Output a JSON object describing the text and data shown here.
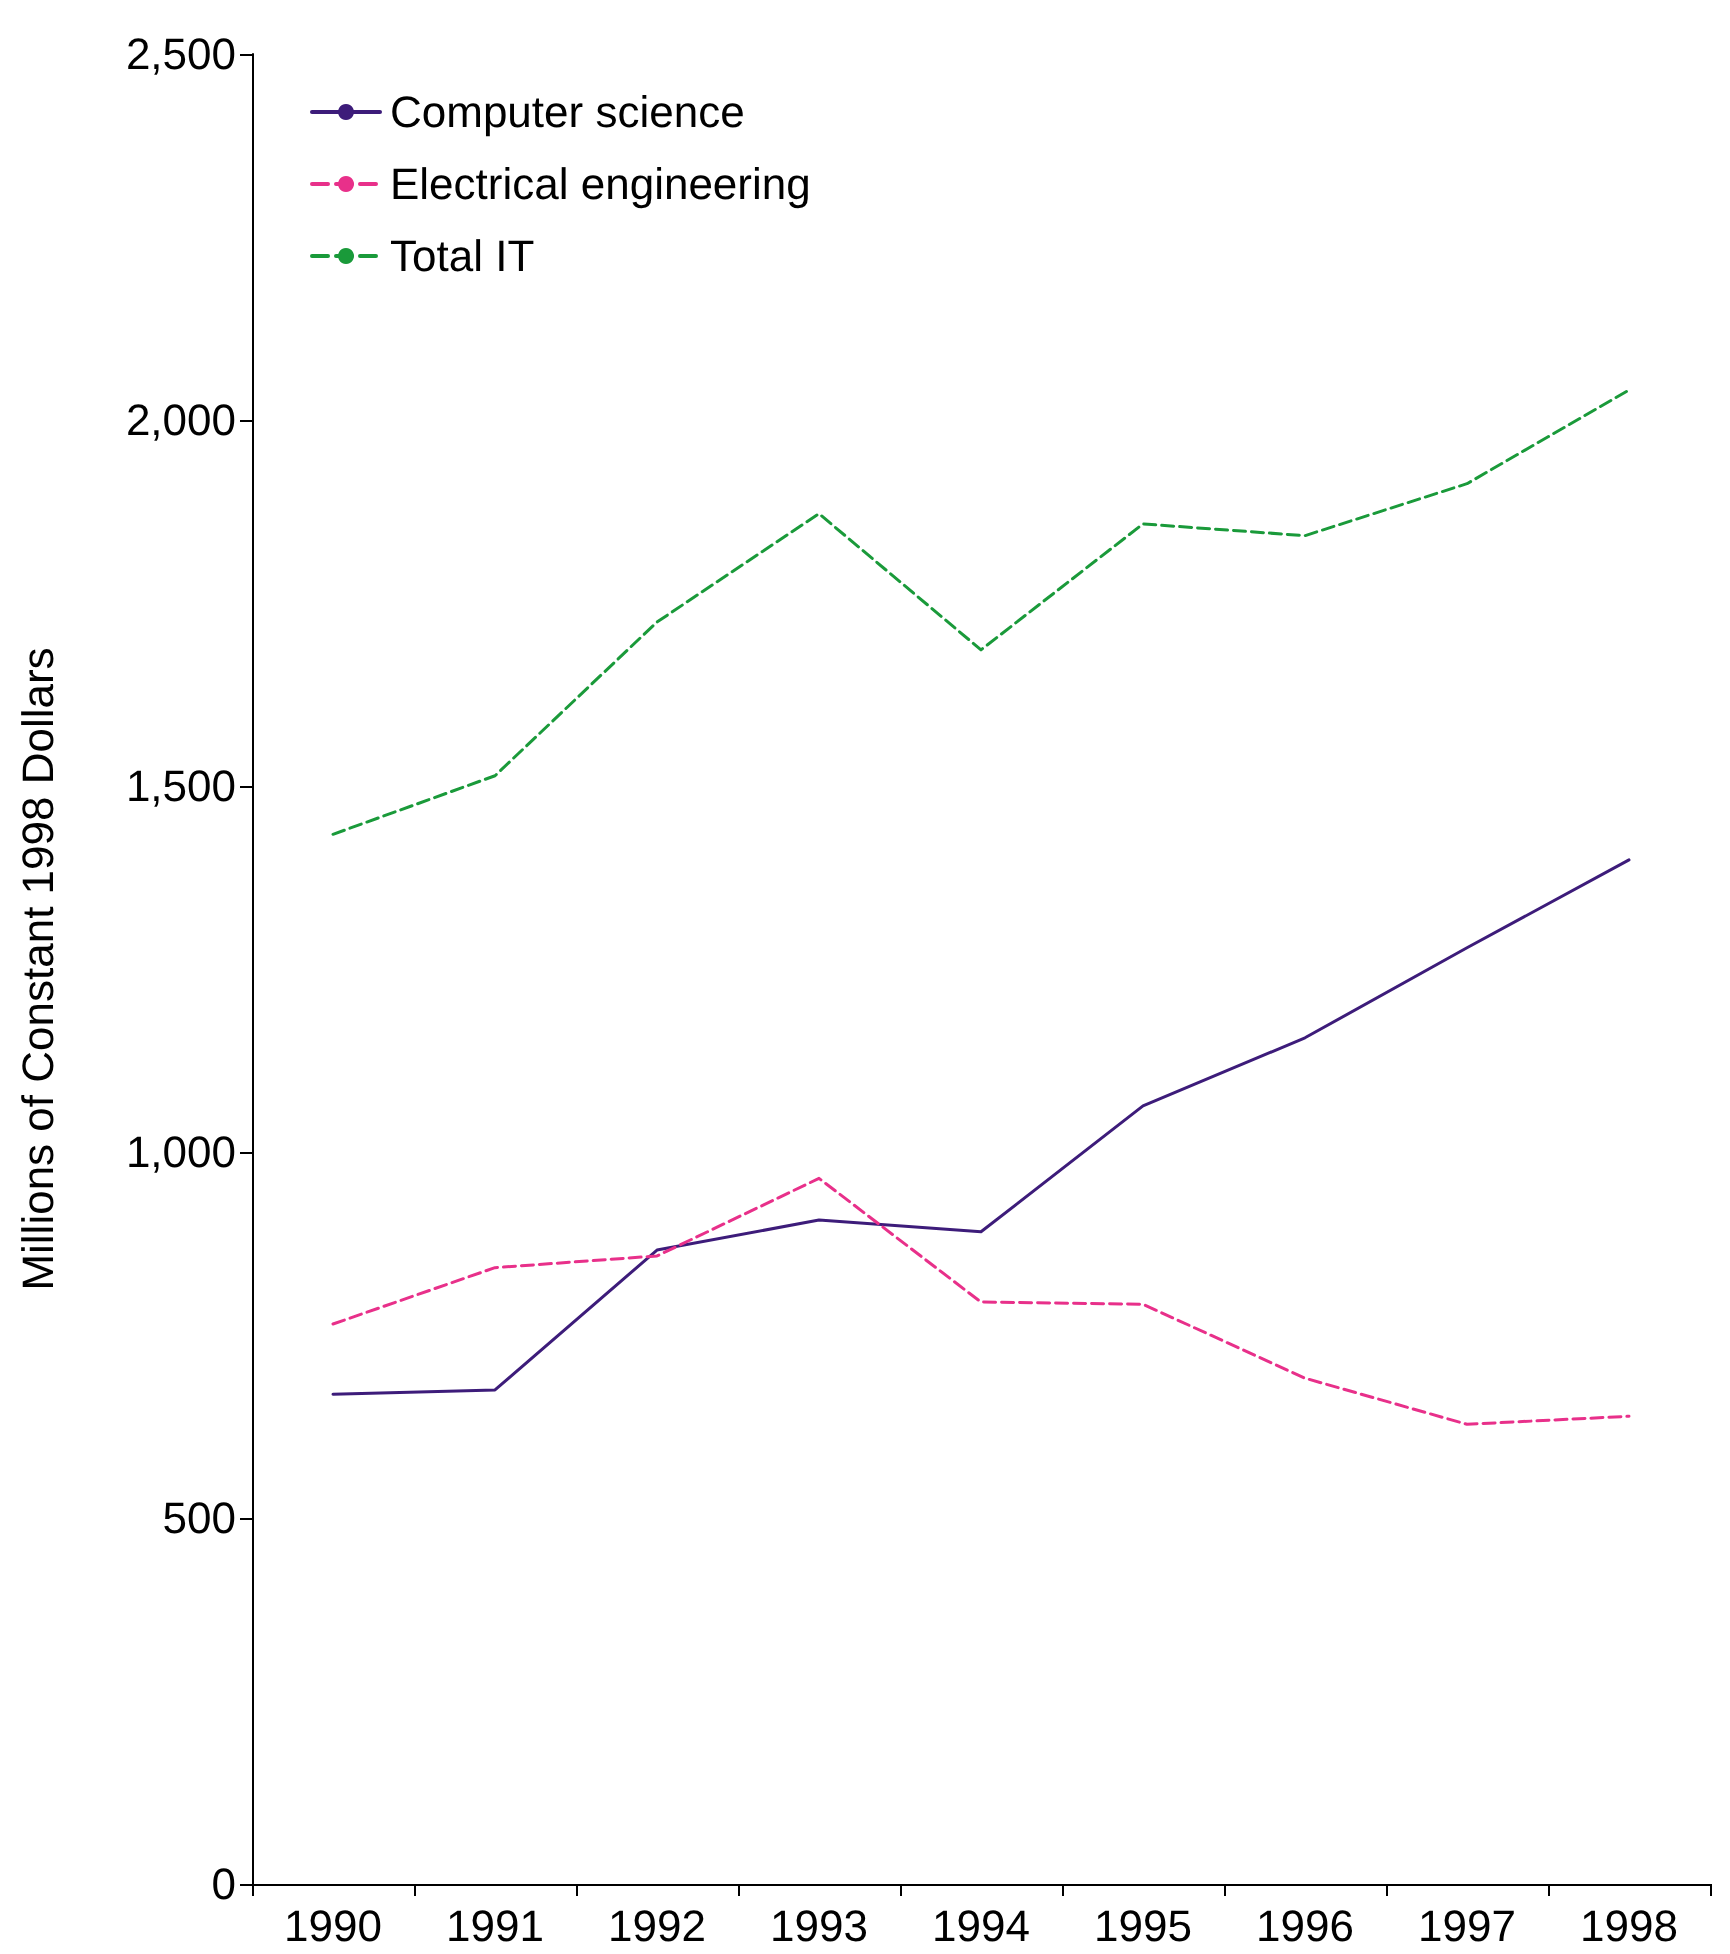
{
  "chart_data": {
    "type": "line",
    "ylabel": "Millions of Constant 1998 Dollars",
    "categories": [
      "1990",
      "1991",
      "1992",
      "1993",
      "1994",
      "1995",
      "1996",
      "1997",
      "1998"
    ],
    "series": [
      {
        "name": "Computer science",
        "color": "#3d1c7a",
        "line_style": "solid",
        "values": [
          669,
          675,
          866,
          907,
          891,
          1063,
          1156,
          1279,
          1399
        ]
      },
      {
        "name": "Electrical engineering",
        "color": "#e8308a",
        "line_style": "dashed",
        "values": [
          765,
          842,
          858,
          964,
          795,
          792,
          691,
          628,
          639
        ]
      },
      {
        "name": "Total IT",
        "color": "#1a9a3a",
        "line_style": "dashed",
        "values": [
          1434,
          1514,
          1724,
          1872,
          1686,
          1858,
          1842,
          1913,
          2041
        ]
      }
    ],
    "ylim": [
      0,
      2500
    ],
    "yticks": [
      0,
      500,
      {
        "value": 1000,
        "label": "1,000"
      },
      {
        "value": 1500,
        "label": "1,500"
      },
      {
        "value": 2000,
        "label": "2,000"
      },
      {
        "value": 2500,
        "label": "2,500"
      }
    ],
    "grid": false,
    "legend": "top left",
    "marker": "none"
  }
}
